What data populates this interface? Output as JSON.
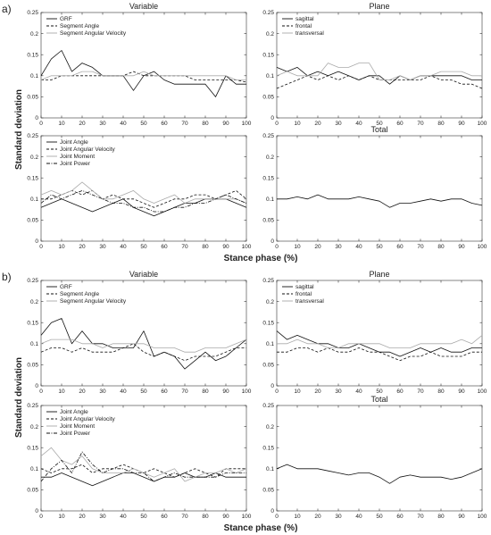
{
  "figure": {
    "ylabel": "Standard deviation",
    "xlabel": "Stance phase (%)"
  },
  "chart_data": [
    {
      "type": "line",
      "group": "a)",
      "title": "Variable",
      "xlim": [
        0,
        100
      ],
      "ylim": [
        0,
        0.25
      ],
      "x": [
        0,
        5,
        10,
        15,
        20,
        25,
        30,
        35,
        40,
        45,
        50,
        55,
        60,
        65,
        70,
        75,
        80,
        85,
        90,
        95,
        100
      ],
      "series": [
        {
          "name": "GRF",
          "style": "solid",
          "color": "#111111",
          "values": [
            0.1,
            0.14,
            0.16,
            0.11,
            0.13,
            0.12,
            0.1,
            0.1,
            0.1,
            0.065,
            0.1,
            0.11,
            0.09,
            0.08,
            0.08,
            0.08,
            0.08,
            0.05,
            0.1,
            0.08,
            0.08
          ]
        },
        {
          "name": "Segment Angle",
          "style": "dashed",
          "color": "#111111",
          "values": [
            0.09,
            0.09,
            0.1,
            0.1,
            0.1,
            0.1,
            0.1,
            0.1,
            0.1,
            0.11,
            0.1,
            0.1,
            0.1,
            0.1,
            0.1,
            0.09,
            0.09,
            0.09,
            0.09,
            0.09,
            0.085
          ]
        },
        {
          "name": "Segment Angular Velocity",
          "style": "solid",
          "color": "#aaaaaa",
          "values": [
            0.09,
            0.1,
            0.1,
            0.1,
            0.11,
            0.11,
            0.1,
            0.1,
            0.1,
            0.1,
            0.11,
            0.1,
            0.1,
            0.1,
            0.1,
            0.1,
            0.1,
            0.1,
            0.1,
            0.09,
            0.09
          ]
        }
      ]
    },
    {
      "type": "line",
      "group": "a)",
      "title": "Plane",
      "xlim": [
        0,
        100
      ],
      "ylim": [
        0,
        0.25
      ],
      "x": [
        0,
        5,
        10,
        15,
        20,
        25,
        30,
        35,
        40,
        45,
        50,
        55,
        60,
        65,
        70,
        75,
        80,
        85,
        90,
        95,
        100
      ],
      "series": [
        {
          "name": "sagittal",
          "style": "solid",
          "color": "#111111",
          "values": [
            0.12,
            0.11,
            0.12,
            0.1,
            0.11,
            0.1,
            0.11,
            0.1,
            0.09,
            0.1,
            0.1,
            0.08,
            0.1,
            0.09,
            0.1,
            0.1,
            0.1,
            0.1,
            0.1,
            0.09,
            0.09
          ]
        },
        {
          "name": "frontal",
          "style": "dashed",
          "color": "#111111",
          "values": [
            0.07,
            0.08,
            0.09,
            0.1,
            0.09,
            0.1,
            0.09,
            0.1,
            0.09,
            0.1,
            0.09,
            0.09,
            0.09,
            0.09,
            0.09,
            0.1,
            0.09,
            0.09,
            0.08,
            0.08,
            0.07
          ]
        },
        {
          "name": "transversal",
          "style": "solid",
          "color": "#aaaaaa",
          "values": [
            0.1,
            0.11,
            0.1,
            0.1,
            0.1,
            0.13,
            0.12,
            0.12,
            0.13,
            0.13,
            0.09,
            0.09,
            0.1,
            0.09,
            0.1,
            0.1,
            0.11,
            0.11,
            0.11,
            0.1,
            0.1
          ]
        }
      ]
    },
    {
      "type": "line",
      "group": "a)",
      "title": "",
      "xlim": [
        0,
        100
      ],
      "ylim": [
        0,
        0.25
      ],
      "x": [
        0,
        5,
        10,
        15,
        20,
        25,
        30,
        35,
        40,
        45,
        50,
        55,
        60,
        65,
        70,
        75,
        80,
        85,
        90,
        95,
        100
      ],
      "series": [
        {
          "name": "Joint Angle",
          "style": "solid",
          "color": "#111111",
          "values": [
            0.08,
            0.09,
            0.1,
            0.09,
            0.08,
            0.07,
            0.08,
            0.09,
            0.1,
            0.08,
            0.07,
            0.06,
            0.07,
            0.08,
            0.09,
            0.09,
            0.1,
            0.1,
            0.1,
            0.09,
            0.08
          ]
        },
        {
          "name": "Joint Angular Velocity",
          "style": "dashed",
          "color": "#111111",
          "values": [
            0.1,
            0.1,
            0.11,
            0.12,
            0.11,
            0.12,
            0.1,
            0.11,
            0.1,
            0.1,
            0.09,
            0.08,
            0.09,
            0.1,
            0.1,
            0.11,
            0.11,
            0.1,
            0.11,
            0.12,
            0.1
          ]
        },
        {
          "name": "Joint Moment",
          "style": "solid",
          "color": "#aaaaaa",
          "values": [
            0.11,
            0.12,
            0.11,
            0.12,
            0.14,
            0.12,
            0.1,
            0.1,
            0.11,
            0.12,
            0.1,
            0.09,
            0.1,
            0.11,
            0.09,
            0.1,
            0.1,
            0.1,
            0.1,
            0.1,
            0.09
          ]
        },
        {
          "name": "Joint Power",
          "style": "dashdot",
          "color": "#111111",
          "values": [
            0.09,
            0.11,
            0.1,
            0.11,
            0.12,
            0.11,
            0.1,
            0.09,
            0.09,
            0.08,
            0.08,
            0.07,
            0.07,
            0.08,
            0.08,
            0.09,
            0.09,
            0.1,
            0.11,
            0.1,
            0.09
          ]
        }
      ]
    },
    {
      "type": "line",
      "group": "a)",
      "title": "Total",
      "xlim": [
        0,
        100
      ],
      "ylim": [
        0,
        0.25
      ],
      "x": [
        0,
        5,
        10,
        15,
        20,
        25,
        30,
        35,
        40,
        45,
        50,
        55,
        60,
        65,
        70,
        75,
        80,
        85,
        90,
        95,
        100
      ],
      "series": [
        {
          "name": "",
          "style": "solid",
          "color": "#111111",
          "values": [
            0.1,
            0.1,
            0.105,
            0.1,
            0.11,
            0.1,
            0.1,
            0.1,
            0.105,
            0.1,
            0.095,
            0.08,
            0.09,
            0.09,
            0.095,
            0.1,
            0.095,
            0.1,
            0.1,
            0.09,
            0.085
          ]
        }
      ]
    },
    {
      "type": "line",
      "group": "b)",
      "title": "Variable",
      "xlim": [
        0,
        100
      ],
      "ylim": [
        0,
        0.25
      ],
      "x": [
        0,
        5,
        10,
        15,
        20,
        25,
        30,
        35,
        40,
        45,
        50,
        55,
        60,
        65,
        70,
        75,
        80,
        85,
        90,
        95,
        100
      ],
      "series": [
        {
          "name": "GRF",
          "style": "solid",
          "color": "#111111",
          "values": [
            0.12,
            0.15,
            0.16,
            0.1,
            0.13,
            0.1,
            0.1,
            0.09,
            0.09,
            0.09,
            0.13,
            0.07,
            0.08,
            0.07,
            0.04,
            0.06,
            0.08,
            0.06,
            0.07,
            0.09,
            0.11
          ]
        },
        {
          "name": "Segment Angle",
          "style": "dashed",
          "color": "#111111",
          "values": [
            0.08,
            0.09,
            0.09,
            0.08,
            0.09,
            0.08,
            0.08,
            0.08,
            0.09,
            0.1,
            0.08,
            0.07,
            0.08,
            0.07,
            0.06,
            0.07,
            0.07,
            0.07,
            0.08,
            0.09,
            0.09
          ]
        },
        {
          "name": "Segment Angular Velocity",
          "style": "solid",
          "color": "#aaaaaa",
          "values": [
            0.1,
            0.11,
            0.11,
            0.11,
            0.1,
            0.1,
            0.09,
            0.1,
            0.1,
            0.1,
            0.1,
            0.09,
            0.09,
            0.09,
            0.08,
            0.08,
            0.09,
            0.09,
            0.09,
            0.1,
            0.11
          ]
        }
      ]
    },
    {
      "type": "line",
      "group": "b)",
      "title": "Plane",
      "xlim": [
        0,
        100
      ],
      "ylim": [
        0,
        0.25
      ],
      "x": [
        0,
        5,
        10,
        15,
        20,
        25,
        30,
        35,
        40,
        45,
        50,
        55,
        60,
        65,
        70,
        75,
        80,
        85,
        90,
        95,
        100
      ],
      "series": [
        {
          "name": "sagittal",
          "style": "solid",
          "color": "#111111",
          "values": [
            0.13,
            0.11,
            0.12,
            0.11,
            0.1,
            0.1,
            0.09,
            0.09,
            0.1,
            0.09,
            0.08,
            0.08,
            0.07,
            0.08,
            0.09,
            0.08,
            0.09,
            0.08,
            0.08,
            0.09,
            0.09
          ]
        },
        {
          "name": "frontal",
          "style": "dashed",
          "color": "#111111",
          "values": [
            0.08,
            0.08,
            0.09,
            0.09,
            0.08,
            0.09,
            0.08,
            0.08,
            0.09,
            0.08,
            0.08,
            0.07,
            0.06,
            0.07,
            0.07,
            0.08,
            0.07,
            0.07,
            0.07,
            0.08,
            0.08
          ]
        },
        {
          "name": "transversal",
          "style": "solid",
          "color": "#aaaaaa",
          "values": [
            0.1,
            0.1,
            0.11,
            0.1,
            0.1,
            0.09,
            0.09,
            0.1,
            0.1,
            0.1,
            0.1,
            0.09,
            0.09,
            0.09,
            0.1,
            0.1,
            0.1,
            0.1,
            0.11,
            0.1,
            0.12
          ]
        }
      ]
    },
    {
      "type": "line",
      "group": "b)",
      "title": "",
      "xlim": [
        0,
        100
      ],
      "ylim": [
        0,
        0.25
      ],
      "x": [
        0,
        5,
        10,
        15,
        20,
        25,
        30,
        35,
        40,
        45,
        50,
        55,
        60,
        65,
        70,
        75,
        80,
        85,
        90,
        95,
        100
      ],
      "series": [
        {
          "name": "Joint Angle",
          "style": "solid",
          "color": "#111111",
          "values": [
            0.08,
            0.08,
            0.09,
            0.08,
            0.07,
            0.06,
            0.07,
            0.08,
            0.09,
            0.09,
            0.08,
            0.07,
            0.08,
            0.08,
            0.09,
            0.08,
            0.08,
            0.09,
            0.08,
            0.08,
            0.08
          ]
        },
        {
          "name": "Joint Angular Velocity",
          "style": "dashed",
          "color": "#111111",
          "values": [
            0.1,
            0.09,
            0.1,
            0.1,
            0.11,
            0.09,
            0.1,
            0.1,
            0.11,
            0.1,
            0.09,
            0.1,
            0.09,
            0.08,
            0.09,
            0.1,
            0.09,
            0.08,
            0.1,
            0.1,
            0.1
          ]
        },
        {
          "name": "Joint Moment",
          "style": "solid",
          "color": "#aaaaaa",
          "values": [
            0.13,
            0.15,
            0.12,
            0.11,
            0.13,
            0.1,
            0.09,
            0.09,
            0.09,
            0.1,
            0.09,
            0.08,
            0.09,
            0.1,
            0.07,
            0.08,
            0.09,
            0.09,
            0.1,
            0.09,
            0.1
          ]
        },
        {
          "name": "Joint Power",
          "style": "dashdot",
          "color": "#111111",
          "values": [
            0.07,
            0.1,
            0.12,
            0.09,
            0.14,
            0.11,
            0.09,
            0.1,
            0.1,
            0.09,
            0.09,
            0.07,
            0.08,
            0.09,
            0.08,
            0.08,
            0.08,
            0.08,
            0.09,
            0.09,
            0.09
          ]
        }
      ]
    },
    {
      "type": "line",
      "group": "b)",
      "title": "Total",
      "xlim": [
        0,
        100
      ],
      "ylim": [
        0,
        0.25
      ],
      "x": [
        0,
        5,
        10,
        15,
        20,
        25,
        30,
        35,
        40,
        45,
        50,
        55,
        60,
        65,
        70,
        75,
        80,
        85,
        90,
        95,
        100
      ],
      "series": [
        {
          "name": "",
          "style": "solid",
          "color": "#111111",
          "values": [
            0.1,
            0.11,
            0.1,
            0.1,
            0.1,
            0.095,
            0.09,
            0.085,
            0.09,
            0.09,
            0.08,
            0.065,
            0.08,
            0.085,
            0.08,
            0.08,
            0.08,
            0.075,
            0.08,
            0.09,
            0.1
          ]
        }
      ]
    }
  ]
}
